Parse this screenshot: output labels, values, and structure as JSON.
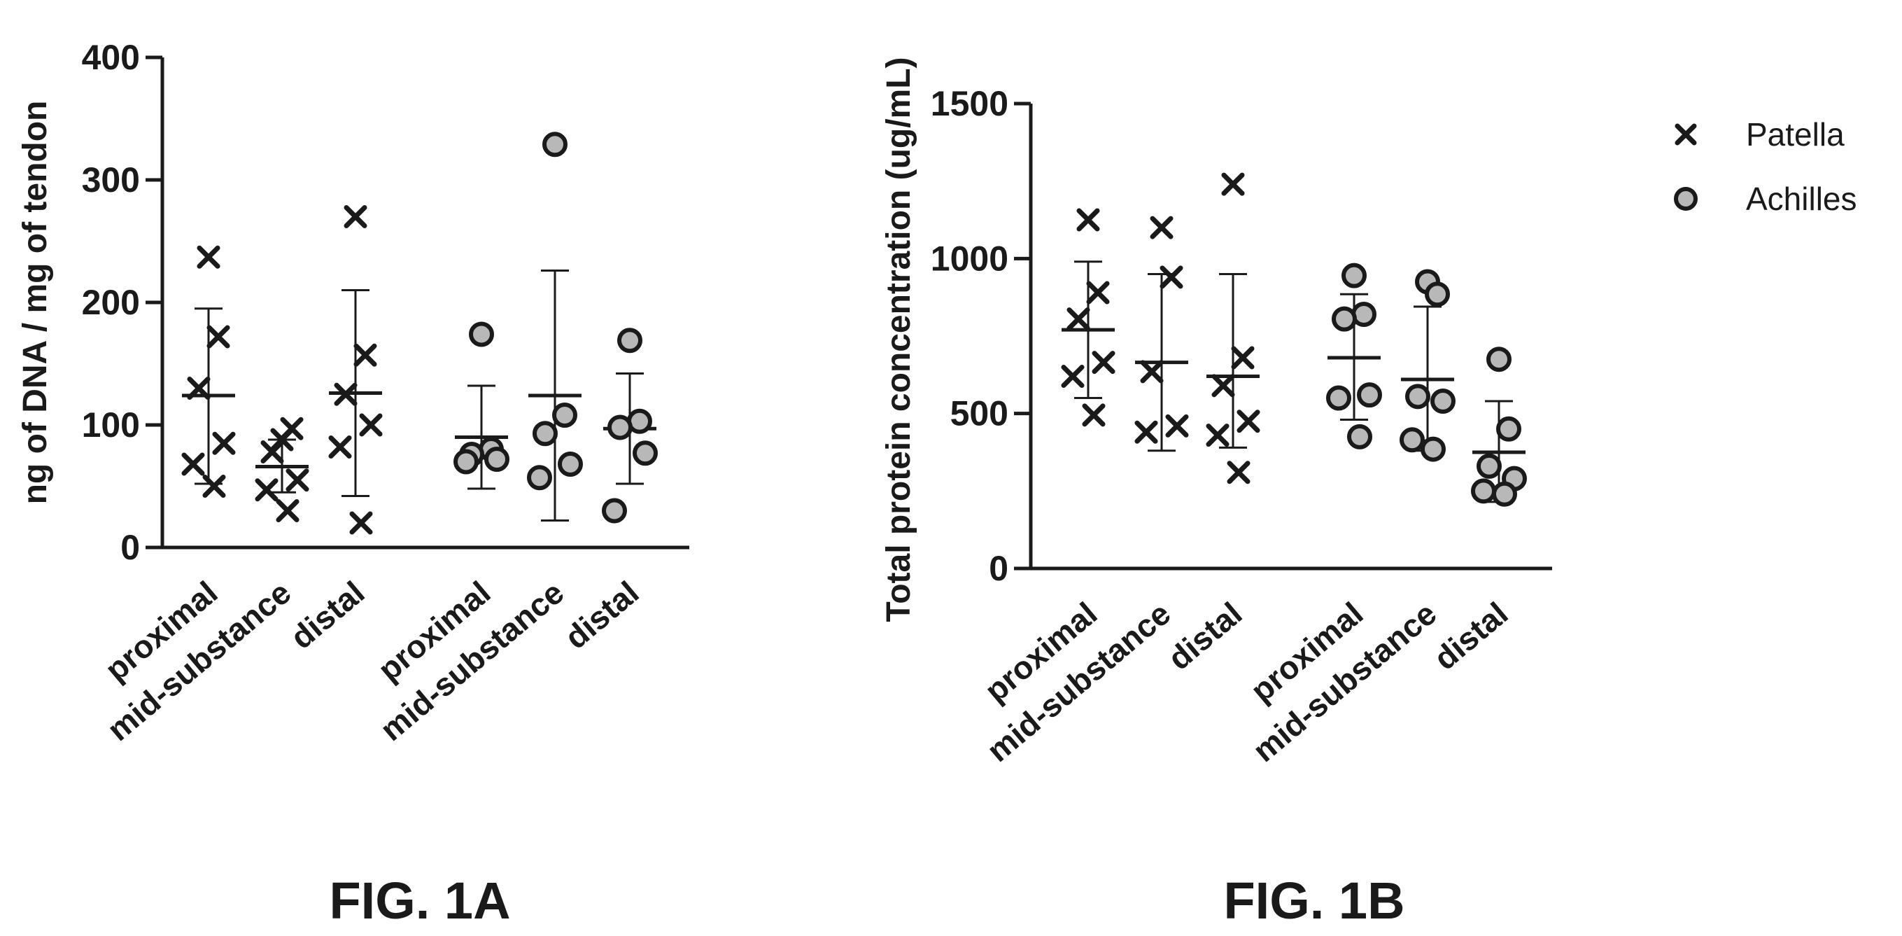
{
  "chart_data": [
    {
      "id": "fig1a",
      "type": "scatter",
      "figure_label": "FIG. 1A",
      "ylabel": "ng of  DNA / mg of tendon",
      "ylim": [
        0,
        400
      ],
      "yticks": [
        0,
        100,
        200,
        300,
        400
      ],
      "categories": [
        "proximal",
        "mid-substance",
        "distal",
        "proximal",
        "mid-substance",
        "distal"
      ],
      "groups": [
        {
          "category": "proximal",
          "series": "Patella",
          "marker": "x",
          "values": [
            237,
            172,
            130,
            85,
            68,
            50
          ],
          "mean": 124,
          "sd_low": 52,
          "sd_high": 195
        },
        {
          "category": "mid-substance",
          "series": "Patella",
          "marker": "x",
          "values": [
            88,
            97,
            78,
            55,
            47,
            30
          ],
          "mean": 66,
          "sd_low": 45,
          "sd_high": 88
        },
        {
          "category": "distal",
          "series": "Patella",
          "marker": "x",
          "values": [
            270,
            157,
            125,
            100,
            82,
            20
          ],
          "mean": 126,
          "sd_low": 42,
          "sd_high": 210
        },
        {
          "category": "proximal",
          "series": "Achilles",
          "marker": "o",
          "values": [
            174,
            80,
            76,
            72,
            70
          ],
          "mean": 90,
          "sd_low": 48,
          "sd_high": 132
        },
        {
          "category": "mid-substance",
          "series": "Achilles",
          "marker": "o",
          "values": [
            329,
            108,
            93,
            68,
            57
          ],
          "mean": 124,
          "sd_low": 22,
          "sd_high": 226
        },
        {
          "category": "distal",
          "series": "Achilles",
          "marker": "o",
          "values": [
            169,
            103,
            98,
            77,
            30
          ],
          "mean": 97,
          "sd_low": 52,
          "sd_high": 142
        }
      ]
    },
    {
      "id": "fig1b",
      "type": "scatter",
      "figure_label": "FIG. 1B",
      "ylabel": "Total protein concentration (ug/mL)",
      "ylim": [
        0,
        1500
      ],
      "yticks": [
        0,
        500,
        1000,
        1500
      ],
      "categories": [
        "proximal",
        "mid-substance",
        "distal",
        "proximal",
        "mid-substance",
        "distal"
      ],
      "legend": {
        "position": "top-right",
        "entries": [
          {
            "label": "Patella",
            "marker": "x"
          },
          {
            "label": "Achilles",
            "marker": "o"
          }
        ]
      },
      "groups": [
        {
          "category": "proximal",
          "series": "Patella",
          "marker": "x",
          "values": [
            1125,
            890,
            805,
            665,
            620,
            495
          ],
          "mean": 770,
          "sd_low": 550,
          "sd_high": 990
        },
        {
          "category": "mid-substance",
          "series": "Patella",
          "marker": "x",
          "values": [
            1100,
            940,
            635,
            460,
            440
          ],
          "mean": 665,
          "sd_low": 380,
          "sd_high": 950
        },
        {
          "category": "distal",
          "series": "Patella",
          "marker": "x",
          "values": [
            1240,
            680,
            590,
            475,
            430,
            310
          ],
          "mean": 620,
          "sd_low": 390,
          "sd_high": 950
        },
        {
          "category": "proximal",
          "series": "Achilles",
          "marker": "o",
          "values": [
            945,
            820,
            805,
            560,
            550,
            425
          ],
          "mean": 680,
          "sd_low": 480,
          "sd_high": 885
        },
        {
          "category": "mid-substance",
          "series": "Achilles",
          "marker": "o",
          "values": [
            925,
            885,
            555,
            540,
            415,
            385
          ],
          "mean": 610,
          "sd_low": 380,
          "sd_high": 845
        },
        {
          "category": "distal",
          "series": "Achilles",
          "marker": "o",
          "values": [
            675,
            450,
            330,
            290,
            250,
            240
          ],
          "mean": 375,
          "sd_low": 215,
          "sd_high": 540
        }
      ]
    }
  ]
}
